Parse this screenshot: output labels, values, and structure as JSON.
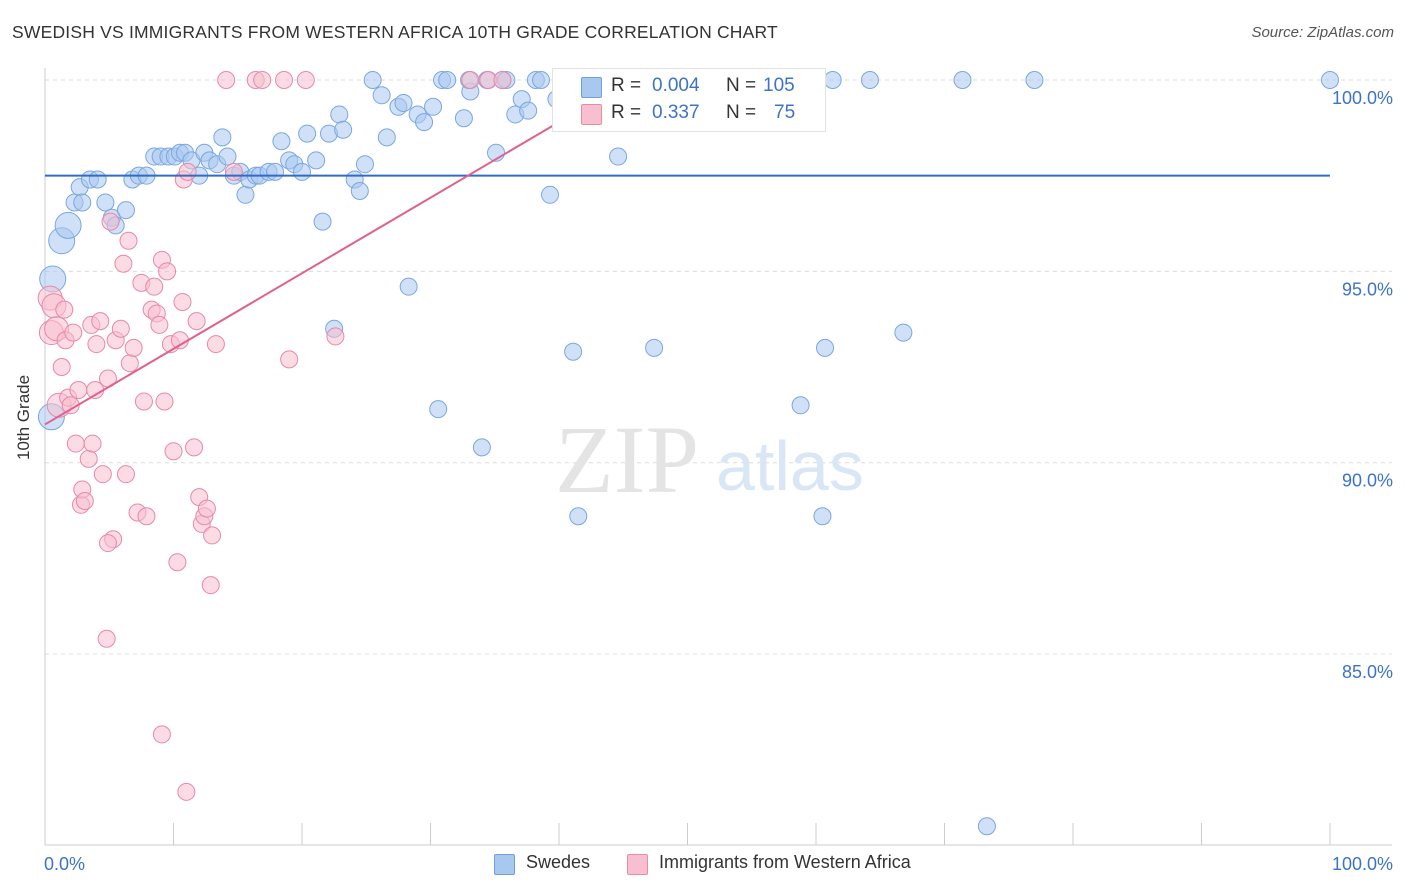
{
  "title": "SWEDISH VS IMMIGRANTS FROM WESTERN AFRICA 10TH GRADE CORRELATION CHART",
  "source": "Source: ZipAtlas.com",
  "watermark": {
    "zip": "ZIP",
    "atlas": "atlas"
  },
  "legend": {
    "r_label": "R =",
    "n_label": "N =",
    "rows": [
      {
        "r": "0.004",
        "n": "105",
        "color": "#a9c8f0",
        "border": "#6f9fdc"
      },
      {
        "r": "0.337",
        "n": "75",
        "color": "#f8bfd0",
        "border": "#e88aa8"
      }
    ]
  },
  "bottom_legend": [
    {
      "label": "Swedes",
      "color": "#a9c8f0",
      "border": "#6f9fdc"
    },
    {
      "label": "Immigrants from Western Africa",
      "color": "#f8bfd0",
      "border": "#e88aa8"
    }
  ],
  "chart_data": {
    "type": "scatter",
    "title": "SWEDISH VS IMMIGRANTS FROM WESTERN AFRICA 10TH GRADE CORRELATION CHART",
    "xlabel": "",
    "ylabel": "10th Grade",
    "xlim": [
      0,
      100
    ],
    "ylim": [
      80.4,
      100.5
    ],
    "x_tick_labels": [
      "0.0%",
      "100.0%"
    ],
    "y_tick_labels": [
      "100.0%",
      "95.0%",
      "90.0%",
      "85.0%"
    ],
    "y_ticks": [
      100,
      95,
      90,
      85
    ],
    "grid": true,
    "series": [
      {
        "name": "Swedes",
        "color": "#7aa7e0",
        "fill": "#a9c8f0",
        "trend": {
          "x": [
            0,
            100
          ],
          "y": [
            97.5,
            97.5
          ],
          "color": "#2f6cc4"
        },
        "points": [
          [
            0.5,
            91.2
          ],
          [
            0.6,
            94.8
          ],
          [
            1.3,
            95.8
          ],
          [
            1.8,
            96.2
          ],
          [
            2.3,
            96.8
          ],
          [
            2.7,
            97.2
          ],
          [
            2.9,
            96.8
          ],
          [
            3.5,
            97.4
          ],
          [
            4.1,
            97.4
          ],
          [
            4.7,
            96.8
          ],
          [
            5.2,
            96.4
          ],
          [
            5.5,
            96.2
          ],
          [
            6.3,
            96.6
          ],
          [
            6.8,
            97.4
          ],
          [
            7.3,
            97.5
          ],
          [
            7.9,
            97.5
          ],
          [
            8.5,
            98.0
          ],
          [
            9.0,
            98.0
          ],
          [
            9.6,
            98.0
          ],
          [
            10.1,
            98.0
          ],
          [
            10.5,
            98.1
          ],
          [
            10.9,
            98.1
          ],
          [
            11.4,
            97.9
          ],
          [
            12.0,
            97.5
          ],
          [
            12.4,
            98.1
          ],
          [
            12.8,
            97.9
          ],
          [
            13.4,
            97.8
          ],
          [
            13.8,
            98.5
          ],
          [
            14.2,
            98.0
          ],
          [
            14.7,
            97.5
          ],
          [
            15.2,
            97.6
          ],
          [
            15.6,
            97.0
          ],
          [
            15.9,
            97.4
          ],
          [
            16.4,
            97.5
          ],
          [
            16.7,
            97.5
          ],
          [
            17.4,
            97.6
          ],
          [
            17.9,
            97.6
          ],
          [
            18.4,
            98.4
          ],
          [
            19.0,
            97.9
          ],
          [
            19.4,
            97.8
          ],
          [
            20.0,
            97.6
          ],
          [
            20.4,
            98.6
          ],
          [
            21.1,
            97.9
          ],
          [
            21.6,
            96.3
          ],
          [
            22.1,
            98.6
          ],
          [
            22.5,
            93.5
          ],
          [
            22.9,
            99.1
          ],
          [
            23.2,
            98.7
          ],
          [
            24.1,
            97.4
          ],
          [
            24.5,
            97.1
          ],
          [
            24.9,
            97.8
          ],
          [
            25.5,
            100.0
          ],
          [
            26.2,
            99.6
          ],
          [
            26.6,
            98.5
          ],
          [
            27.5,
            99.3
          ],
          [
            27.9,
            99.4
          ],
          [
            28.3,
            94.6
          ],
          [
            29.0,
            99.1
          ],
          [
            29.5,
            98.9
          ],
          [
            30.2,
            99.3
          ],
          [
            30.6,
            91.4
          ],
          [
            30.9,
            100.0
          ],
          [
            31.3,
            100.0
          ],
          [
            32.6,
            99.0
          ],
          [
            33.1,
            99.7
          ],
          [
            33.0,
            100.0
          ],
          [
            34.4,
            100.0
          ],
          [
            34.0,
            90.4
          ],
          [
            35.1,
            98.1
          ],
          [
            35.6,
            100.0
          ],
          [
            35.9,
            100.0
          ],
          [
            36.6,
            99.1
          ],
          [
            37.1,
            99.5
          ],
          [
            37.6,
            99.2
          ],
          [
            38.2,
            100.0
          ],
          [
            38.6,
            100.0
          ],
          [
            39.3,
            97.0
          ],
          [
            39.8,
            99.5
          ],
          [
            40.4,
            100.0
          ],
          [
            41.1,
            92.9
          ],
          [
            41.5,
            88.6
          ],
          [
            42.7,
            100.0
          ],
          [
            43.5,
            99.6
          ],
          [
            44.6,
            98.0
          ],
          [
            45.1,
            100.0
          ],
          [
            45.7,
            100.0
          ],
          [
            46.4,
            100.0
          ],
          [
            47.4,
            93.0
          ],
          [
            48.2,
            100.0
          ],
          [
            49.2,
            100.0
          ],
          [
            50.4,
            100.0
          ],
          [
            50.9,
            100.0
          ],
          [
            52.8,
            100.0
          ],
          [
            53.8,
            100.0
          ],
          [
            56.5,
            100.0
          ],
          [
            56.8,
            100.0
          ],
          [
            57.5,
            100.0
          ],
          [
            58.8,
            91.5
          ],
          [
            60.5,
            88.6
          ],
          [
            60.7,
            93.0
          ],
          [
            61.3,
            100.0
          ],
          [
            64.2,
            100.0
          ],
          [
            66.8,
            93.4
          ],
          [
            71.4,
            100.0
          ],
          [
            73.3,
            80.5
          ],
          [
            77.0,
            100.0
          ],
          [
            100.0,
            100.0
          ]
        ]
      },
      {
        "name": "Immigrants from Western Africa",
        "color": "#e888a8",
        "fill": "#f8bfd0",
        "trend": {
          "x": [
            0,
            40
          ],
          "y": [
            91.0,
            98.9
          ],
          "color": "#e0608f"
        },
        "points": [
          [
            0.4,
            94.3
          ],
          [
            0.5,
            93.4
          ],
          [
            0.7,
            94.1
          ],
          [
            0.9,
            93.5
          ],
          [
            1.1,
            91.5
          ],
          [
            1.3,
            92.5
          ],
          [
            1.5,
            94.0
          ],
          [
            1.6,
            93.2
          ],
          [
            1.8,
            91.7
          ],
          [
            2.0,
            91.5
          ],
          [
            2.2,
            93.4
          ],
          [
            2.4,
            90.5
          ],
          [
            2.6,
            91.9
          ],
          [
            2.8,
            88.9
          ],
          [
            2.9,
            89.3
          ],
          [
            3.1,
            89.0
          ],
          [
            3.4,
            90.1
          ],
          [
            3.6,
            93.6
          ],
          [
            3.7,
            90.5
          ],
          [
            3.9,
            91.9
          ],
          [
            4.0,
            93.1
          ],
          [
            4.3,
            93.7
          ],
          [
            4.5,
            89.7
          ],
          [
            4.9,
            92.2
          ],
          [
            5.1,
            96.3
          ],
          [
            5.3,
            88.0
          ],
          [
            5.5,
            93.2
          ],
          [
            5.9,
            93.5
          ],
          [
            6.1,
            95.2
          ],
          [
            6.3,
            89.7
          ],
          [
            6.5,
            95.8
          ],
          [
            6.6,
            92.6
          ],
          [
            6.9,
            93.0
          ],
          [
            7.2,
            88.7
          ],
          [
            7.5,
            94.7
          ],
          [
            7.7,
            91.6
          ],
          [
            7.9,
            88.6
          ],
          [
            8.3,
            94.0
          ],
          [
            8.5,
            94.6
          ],
          [
            8.7,
            93.9
          ],
          [
            8.9,
            93.6
          ],
          [
            9.1,
            95.3
          ],
          [
            9.3,
            91.6
          ],
          [
            9.5,
            95.0
          ],
          [
            9.8,
            93.1
          ],
          [
            10.0,
            90.3
          ],
          [
            10.3,
            87.4
          ],
          [
            10.5,
            93.2
          ],
          [
            10.7,
            94.2
          ],
          [
            10.8,
            97.4
          ],
          [
            11.1,
            97.6
          ],
          [
            11.6,
            90.4
          ],
          [
            11.8,
            93.7
          ],
          [
            12.0,
            89.1
          ],
          [
            12.2,
            88.4
          ],
          [
            12.4,
            88.6
          ],
          [
            12.6,
            88.8
          ],
          [
            12.9,
            86.8
          ],
          [
            13.0,
            88.1
          ],
          [
            13.3,
            93.1
          ],
          [
            14.1,
            100.0
          ],
          [
            14.7,
            97.6
          ],
          [
            16.4,
            100.0
          ],
          [
            16.9,
            100.0
          ],
          [
            18.6,
            100.0
          ],
          [
            19.0,
            92.7
          ],
          [
            20.3,
            100.0
          ],
          [
            22.6,
            93.3
          ],
          [
            33.1,
            100.0
          ],
          [
            34.5,
            100.0
          ],
          [
            35.6,
            100.0
          ],
          [
            9.1,
            82.9
          ],
          [
            11.0,
            81.4
          ],
          [
            4.8,
            85.4
          ],
          [
            4.9,
            87.9
          ]
        ]
      }
    ]
  }
}
